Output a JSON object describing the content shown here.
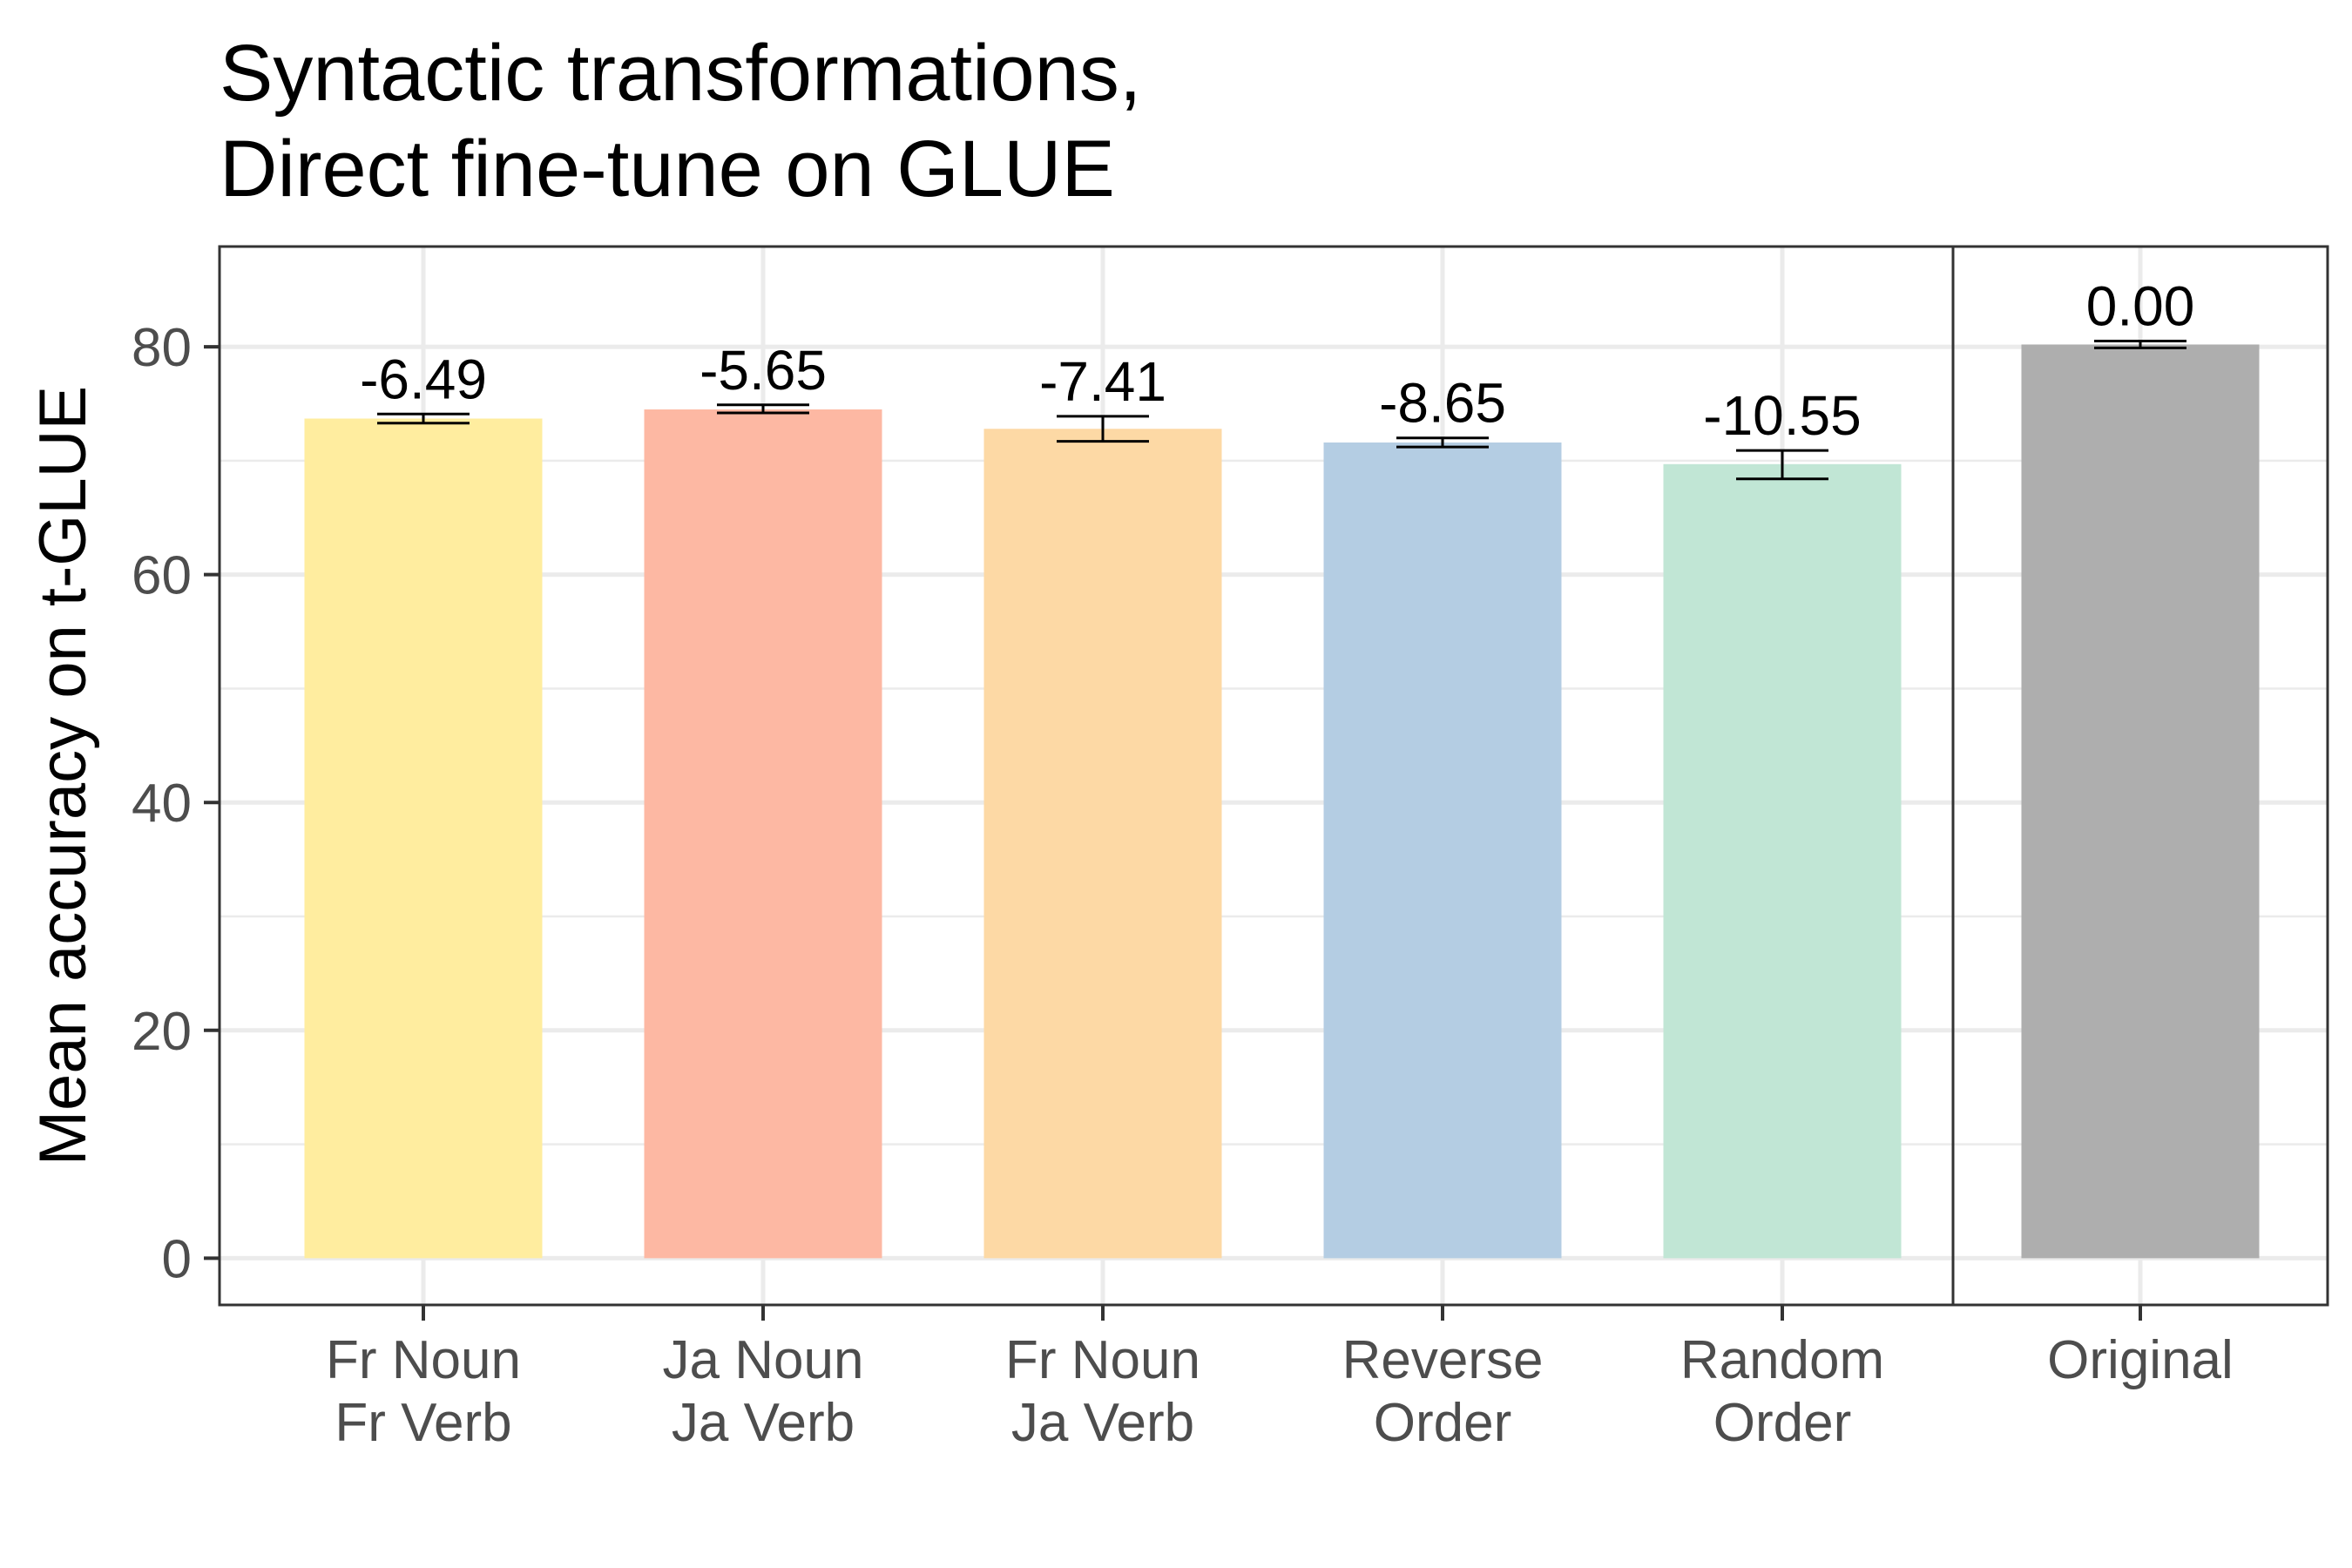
{
  "chart_data": {
    "type": "bar",
    "title_lines": [
      "Syntactic transformations,",
      "Direct fine-tune on GLUE"
    ],
    "xlabel": "",
    "ylabel": "Mean accuracy on t-GLUE",
    "ylim": [
      -4.1,
      88.8
    ],
    "yticks": [
      0,
      20,
      40,
      60,
      80
    ],
    "grid": true,
    "facets": [
      {
        "categories": [
          "Fr Noun\nFr Verb",
          "Ja Noun\nJa Verb",
          "Fr Noun\nJa Verb",
          "Reverse\nOrder",
          "Random\nOrder"
        ]
      },
      {
        "categories": [
          "Original"
        ]
      }
    ],
    "categories": [
      "Fr Noun\nFr Verb",
      "Ja Noun\nJa Verb",
      "Fr Noun\nJa Verb",
      "Reverse\nOrder",
      "Random\nOrder",
      "Original"
    ],
    "values": [
      73.7,
      74.5,
      72.8,
      71.6,
      69.7,
      80.2
    ],
    "error_low": [
      73.3,
      74.2,
      71.7,
      71.2,
      68.4,
      79.9
    ],
    "error_high": [
      74.1,
      74.9,
      73.9,
      72.0,
      70.9,
      80.5
    ],
    "labels": [
      "-6.49",
      "-5.65",
      "-7.41",
      "-8.65",
      "-10.55",
      "0.00"
    ],
    "colors": [
      "#FFED9F",
      "#FDB8A3",
      "#FDD9A5",
      "#B4CDE3",
      "#C1E6D5",
      "#AEAEAE"
    ]
  }
}
